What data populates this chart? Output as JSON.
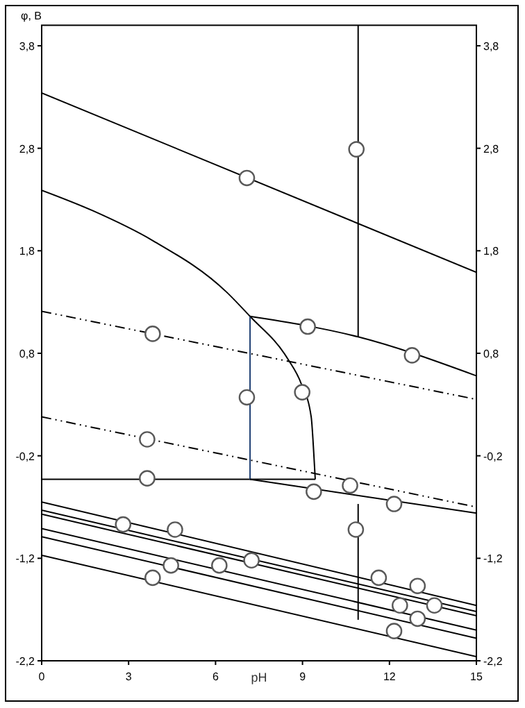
{
  "chart_data": {
    "type": "line",
    "xlabel": "pH",
    "ylabel": "φ, В",
    "xlim": [
      0,
      15
    ],
    "xticks": [
      0,
      3,
      6,
      9,
      12,
      15
    ],
    "ylim": [
      -2.2,
      4.0
    ],
    "yticks": [
      {
        "value": -2.2,
        "label": "-2,2"
      },
      {
        "value": -1.2,
        "label": "-1,2"
      },
      {
        "value": -0.2,
        "label": "-0,2"
      },
      {
        "value": 0.8,
        "label": "0,8"
      },
      {
        "value": 1.8,
        "label": "1,8"
      },
      {
        "value": 2.8,
        "label": "2,8"
      },
      {
        "value": 3.8,
        "label": "3,8"
      }
    ],
    "y2lim": [
      -2.2,
      4.0
    ],
    "y2ticks": [
      {
        "value": -2.2,
        "label": "-2,2"
      },
      {
        "value": -1.2,
        "label": "-1,2"
      },
      {
        "value": -0.2,
        "label": "-0,2"
      },
      {
        "value": 0.8,
        "label": "0,8"
      },
      {
        "value": 1.8,
        "label": "1,8"
      },
      {
        "value": 2.8,
        "label": "2,8"
      },
      {
        "value": 3.8,
        "label": "3,8"
      }
    ],
    "grid": false,
    "series": [
      {
        "color": "#000000",
        "line_style": "solid",
        "x": [
          0,
          15
        ],
        "values": [
          3.34,
          1.59
        ]
      },
      {
        "color": "#000000",
        "line_style": "solid",
        "x": [
          0,
          1.77,
          3.83,
          6.37,
          7.19,
          8.48,
          8.96,
          9.3,
          9.39,
          9.44
        ],
        "values": [
          2.39,
          2.19,
          1.9,
          1.4,
          1.16,
          0.75,
          0.5,
          0.18,
          -0.18,
          -0.43
        ]
      },
      {
        "color": "#000000",
        "line_style": "solid",
        "x": [
          0,
          9.44
        ],
        "values": [
          -0.43,
          -0.43
        ]
      },
      {
        "color": "#1f3f73",
        "line_style": "solid",
        "x": [
          7.19,
          7.19
        ],
        "values": [
          -0.43,
          1.16
        ]
      },
      {
        "color": "#000000",
        "line_style": "solid",
        "x": [
          7.19,
          10.92,
          15
        ],
        "values": [
          1.16,
          0.96,
          0.58
        ]
      },
      {
        "color": "#000000",
        "line_style": "solid",
        "x": [
          10.92,
          10.92
        ],
        "values": [
          0.96,
          4.0
        ]
      },
      {
        "color": "#000000",
        "line_style": "solid",
        "x": [
          7.19,
          15
        ],
        "values": [
          -0.43,
          -0.76
        ]
      },
      {
        "color": "#000000",
        "line_style": "solid",
        "x": [
          10.92,
          10.92
        ],
        "values": [
          -0.67,
          -1.8
        ]
      },
      {
        "color": "#000000",
        "line_style": "dashed",
        "x": [
          0,
          15
        ],
        "values": [
          1.21,
          0.35
        ]
      },
      {
        "color": "#000000",
        "line_style": "dashed",
        "x": [
          0,
          15
        ],
        "values": [
          0.18,
          -0.7
        ]
      },
      {
        "color": "#000000",
        "line_style": "solid",
        "x": [
          0,
          15
        ],
        "values": [
          -0.65,
          -1.66
        ]
      },
      {
        "color": "#000000",
        "line_style": "solid",
        "x": [
          0,
          15
        ],
        "values": [
          -0.73,
          -1.72
        ]
      },
      {
        "color": "#000000",
        "line_style": "solid",
        "x": [
          0,
          15
        ],
        "values": [
          -0.77,
          -1.76
        ]
      },
      {
        "color": "#000000",
        "line_style": "solid",
        "x": [
          0,
          15
        ],
        "values": [
          -0.91,
          -1.9
        ]
      },
      {
        "color": "#000000",
        "line_style": "solid",
        "x": [
          0,
          15
        ],
        "values": [
          -0.99,
          -1.98
        ]
      },
      {
        "color": "#000000",
        "line_style": "solid",
        "x": [
          0,
          15
        ],
        "values": [
          -1.17,
          -2.16
        ]
      },
      {
        "type": "scatter",
        "marker": "circle",
        "color": "#595959",
        "x": [
          7.08,
          10.86,
          3.83,
          9.18,
          12.78,
          7.08,
          8.99,
          3.64,
          3.64,
          9.39,
          10.64,
          12.16,
          10.84,
          2.81,
          4.6,
          4.46,
          6.13,
          7.24,
          3.83,
          11.63,
          12.97,
          12.36,
          13.55,
          12.97,
          12.16
        ],
        "values": [
          2.51,
          2.79,
          0.99,
          1.06,
          0.78,
          0.37,
          0.42,
          -0.04,
          -0.42,
          -0.55,
          -0.49,
          -0.67,
          -0.92,
          -0.87,
          -0.92,
          -1.27,
          -1.27,
          -1.22,
          -1.39,
          -1.39,
          -1.47,
          -1.66,
          -1.66,
          -1.79,
          -1.91
        ]
      }
    ]
  }
}
